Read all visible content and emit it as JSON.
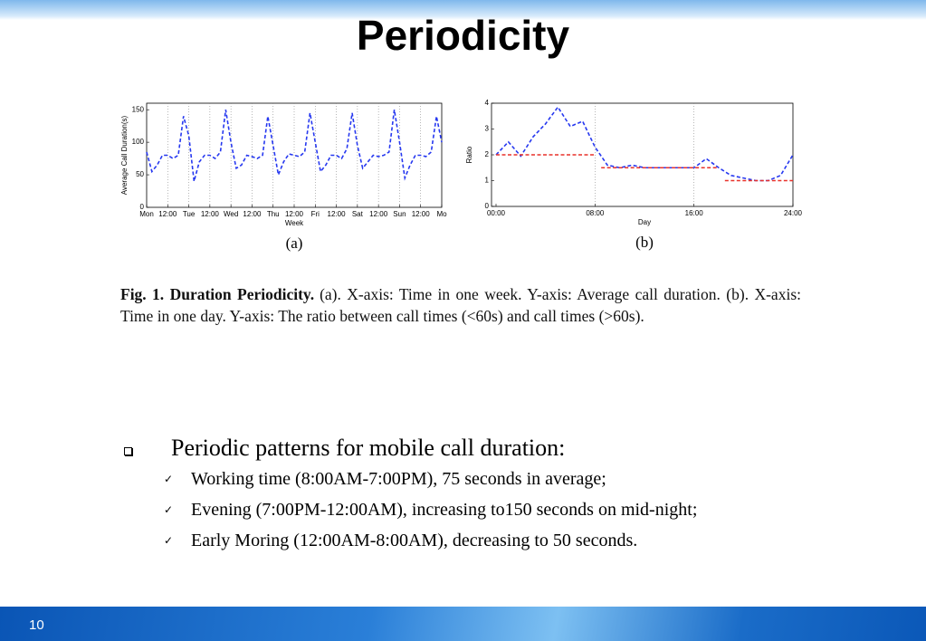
{
  "title": "Periodicity",
  "chart_data": [
    {
      "type": "line",
      "panel_label": "(a)",
      "x_label": "Week",
      "y_label": "Average Call Duration(s)",
      "x": [
        0,
        3,
        6,
        9,
        12,
        15,
        18,
        21,
        24,
        27,
        30,
        33,
        36,
        39,
        42,
        45,
        48,
        51,
        54,
        57,
        60,
        63,
        66,
        69,
        72,
        75,
        78,
        81,
        84,
        87,
        90,
        93,
        96,
        99,
        102,
        105,
        108,
        111,
        114,
        117,
        120,
        123,
        126,
        129,
        132,
        135,
        138,
        141,
        144,
        147,
        150,
        153,
        156,
        159,
        162,
        165,
        168
      ],
      "xlim": [
        0,
        168
      ],
      "xticks": [
        {
          "value": 0,
          "label": "Mon"
        },
        {
          "value": 12,
          "label": "12:00"
        },
        {
          "value": 24,
          "label": "Tue"
        },
        {
          "value": 36,
          "label": "12:00"
        },
        {
          "value": 48,
          "label": "Wed"
        },
        {
          "value": 60,
          "label": "12:00"
        },
        {
          "value": 72,
          "label": "Thu"
        },
        {
          "value": 84,
          "label": "12:00"
        },
        {
          "value": 96,
          "label": "Fri"
        },
        {
          "value": 108,
          "label": "12:00"
        },
        {
          "value": 120,
          "label": "Sat"
        },
        {
          "value": 132,
          "label": "12:00"
        },
        {
          "value": 144,
          "label": "Sun"
        },
        {
          "value": 156,
          "label": "12:00"
        },
        {
          "value": 168,
          "label": "Mo"
        }
      ],
      "ylim": [
        0,
        160
      ],
      "yticks": [
        0,
        50,
        100,
        150
      ],
      "grid": "x",
      "series": [
        {
          "color": "#2638f0",
          "dashed": true,
          "values": [
            85,
            55,
            65,
            80,
            80,
            75,
            80,
            140,
            110,
            40,
            70,
            80,
            80,
            75,
            85,
            150,
            100,
            60,
            65,
            80,
            78,
            75,
            80,
            140,
            95,
            50,
            70,
            82,
            80,
            78,
            85,
            145,
            100,
            55,
            65,
            80,
            80,
            75,
            90,
            145,
            95,
            60,
            70,
            80,
            78,
            80,
            85,
            150,
            100,
            45,
            65,
            80,
            80,
            78,
            85,
            140,
            100
          ]
        }
      ]
    },
    {
      "type": "line",
      "panel_label": "(b)",
      "x_label": "Day",
      "y_label": "Ratio",
      "x": [
        0,
        1,
        2,
        3,
        4,
        5,
        6,
        7,
        8,
        9,
        10,
        11,
        12,
        13,
        14,
        15,
        16,
        17,
        18,
        19,
        20,
        21,
        22,
        23,
        24
      ],
      "xlim": [
        0,
        24
      ],
      "xticks": [
        {
          "value": 0,
          "label": "00:00"
        },
        {
          "value": 8,
          "label": "08:00"
        },
        {
          "value": 16,
          "label": "16:00"
        },
        {
          "value": 24,
          "label": "24:00"
        }
      ],
      "ylim": [
        0,
        4
      ],
      "yticks": [
        0,
        1,
        2,
        3,
        4
      ],
      "grid": "x",
      "series": [
        {
          "color": "#2638f0",
          "dashed": true,
          "values": [
            2.0,
            2.5,
            1.95,
            2.7,
            3.2,
            3.85,
            3.1,
            3.3,
            2.3,
            1.6,
            1.5,
            1.6,
            1.5,
            1.5,
            1.5,
            1.5,
            1.5,
            1.85,
            1.5,
            1.2,
            1.1,
            1.0,
            1.0,
            1.2,
            2.0
          ]
        },
        {
          "color": "#e8312a",
          "dashed": true,
          "x": [
            0,
            8
          ],
          "values": [
            2,
            2
          ]
        },
        {
          "color": "#e8312a",
          "dashed": true,
          "x": [
            8.5,
            18
          ],
          "values": [
            1.5,
            1.5
          ]
        },
        {
          "color": "#e8312a",
          "dashed": true,
          "x": [
            18.5,
            24
          ],
          "values": [
            1,
            1
          ]
        }
      ]
    }
  ],
  "caption": {
    "label": "Fig. 1.  Duration Periodicity.",
    "text": "(a). X-axis: Time in one week. Y-axis: Average call duration. (b). X-axis: Time in one day. Y-axis: The ratio between call times (<60s) and call times (>60s)."
  },
  "bullets": {
    "main": "Periodic patterns for mobile call duration:",
    "items": [
      "Working time (8:00AM-7:00PM), 75 seconds in average;",
      "Evening (7:00PM-12:00AM), increasing to150 seconds on mid-night;",
      "Early Moring (12:00AM-8:00AM), decreasing to 50 seconds."
    ]
  },
  "page_number": "10"
}
